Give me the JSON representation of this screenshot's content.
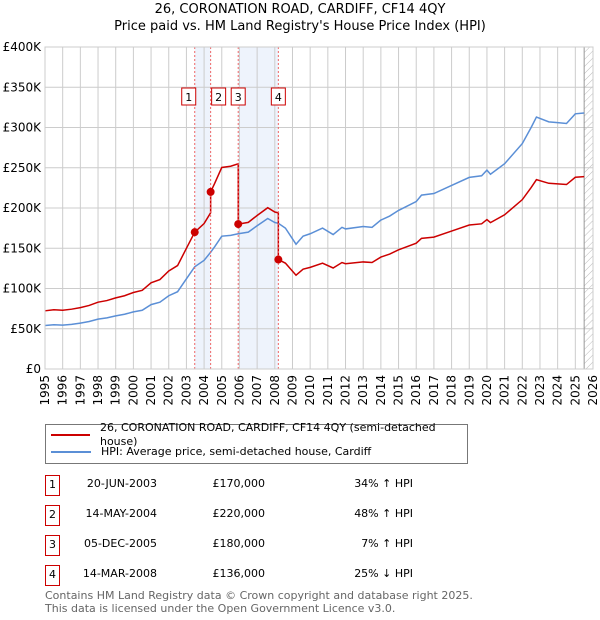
{
  "title": "26, CORONATION ROAD, CARDIFF, CF14 4QY",
  "subtitle": "Price paid vs. HM Land Registry's House Price Index (HPI)",
  "chart_data": {
    "type": "line",
    "title": "26, CORONATION ROAD, CARDIFF, CF14 4QY — Price paid vs. HM Land Registry's House Price Index (HPI)",
    "xlim": [
      1995,
      2026
    ],
    "ylim": [
      0,
      400000
    ],
    "yticks": [
      0,
      50000,
      100000,
      150000,
      200000,
      250000,
      300000,
      350000,
      400000
    ],
    "ytick_labels": [
      "£0",
      "£50K",
      "£100K",
      "£150K",
      "£200K",
      "£250K",
      "£300K",
      "£350K",
      "£400K"
    ],
    "xticks": [
      "1995",
      "1996",
      "1997",
      "1998",
      "1999",
      "2000",
      "2001",
      "2002",
      "2003",
      "2004",
      "2005",
      "2006",
      "2007",
      "2008",
      "2009",
      "2010",
      "2011",
      "2012",
      "2013",
      "2014",
      "2015",
      "2016",
      "2017",
      "2018",
      "2019",
      "2020",
      "2021",
      "2022",
      "2023",
      "2024",
      "2025",
      "2026"
    ],
    "grid": true,
    "hpi_series": {
      "name": "HPI: Average price, semi-detached house, Cardiff",
      "color": "#5b8fd6",
      "x": [
        1995,
        1995.5,
        1996,
        1996.5,
        1997,
        1997.5,
        1998,
        1998.5,
        1999,
        1999.5,
        2000,
        2000.5,
        2001,
        2001.5,
        2002,
        2002.5,
        2003,
        2003.47,
        2004,
        2004.37,
        2004.6,
        2005,
        2005.5,
        2005.93,
        2006.5,
        2007,
        2007.6,
        2008,
        2008.2,
        2008.6,
        2009.2,
        2009.6,
        2010,
        2010.7,
        2011.3,
        2011.8,
        2012,
        2013,
        2013.5,
        2014,
        2014.5,
        2015,
        2016,
        2016.3,
        2017,
        2018,
        2019,
        2019.7,
        2020,
        2020.2,
        2021,
        2022,
        2022.5,
        2022.8,
        2023.5,
        2024,
        2024.5,
        2025,
        2025.5
      ],
      "y": [
        54000,
        55000,
        54500,
        55500,
        57000,
        59000,
        62000,
        63500,
        66000,
        68000,
        71000,
        73000,
        80000,
        83000,
        91000,
        96000,
        112000,
        127000,
        135000,
        145000,
        152000,
        165000,
        166000,
        168000,
        170000,
        178000,
        187000,
        182000,
        181000,
        175000,
        155000,
        165000,
        168000,
        175000,
        167000,
        176000,
        174000,
        177000,
        176000,
        185000,
        190000,
        197000,
        208000,
        216000,
        218000,
        228000,
        238000,
        240000,
        247000,
        242000,
        255000,
        280000,
        300000,
        313000,
        307000,
        306000,
        305000,
        317000,
        318000
      ]
    },
    "price_series": {
      "name": "26, CORONATION ROAD, CARDIFF, CF14 4QY (semi-detached house)",
      "color": "#cc0000"
    },
    "sales": [
      {
        "id": "1",
        "x": 2003.47,
        "date": "20-JUN-2003",
        "price": 170000,
        "price_label": "£170,000",
        "hpi_label": "34% ↑ HPI"
      },
      {
        "id": "2",
        "x": 2004.37,
        "date": "14-MAY-2004",
        "price": 220000,
        "price_label": "£220,000",
        "hpi_label": "48% ↑ HPI"
      },
      {
        "id": "3",
        "x": 2005.93,
        "date": "05-DEC-2005",
        "price": 180000,
        "price_label": "£180,000",
        "hpi_label": "7% ↑ HPI"
      },
      {
        "id": "4",
        "x": 2008.2,
        "date": "14-MAR-2008",
        "price": 136000,
        "price_label": "£136,000",
        "hpi_label": "25% ↓ HPI"
      }
    ],
    "forecast_start": 2025.5
  },
  "legend": {
    "price": "26, CORONATION ROAD, CARDIFF, CF14 4QY (semi-detached house)",
    "hpi": "HPI: Average price, semi-detached house, Cardiff"
  },
  "footer": {
    "line1": "Contains HM Land Registry data © Crown copyright and database right 2025.",
    "line2": "This data is licensed under the Open Government Licence v3.0."
  }
}
